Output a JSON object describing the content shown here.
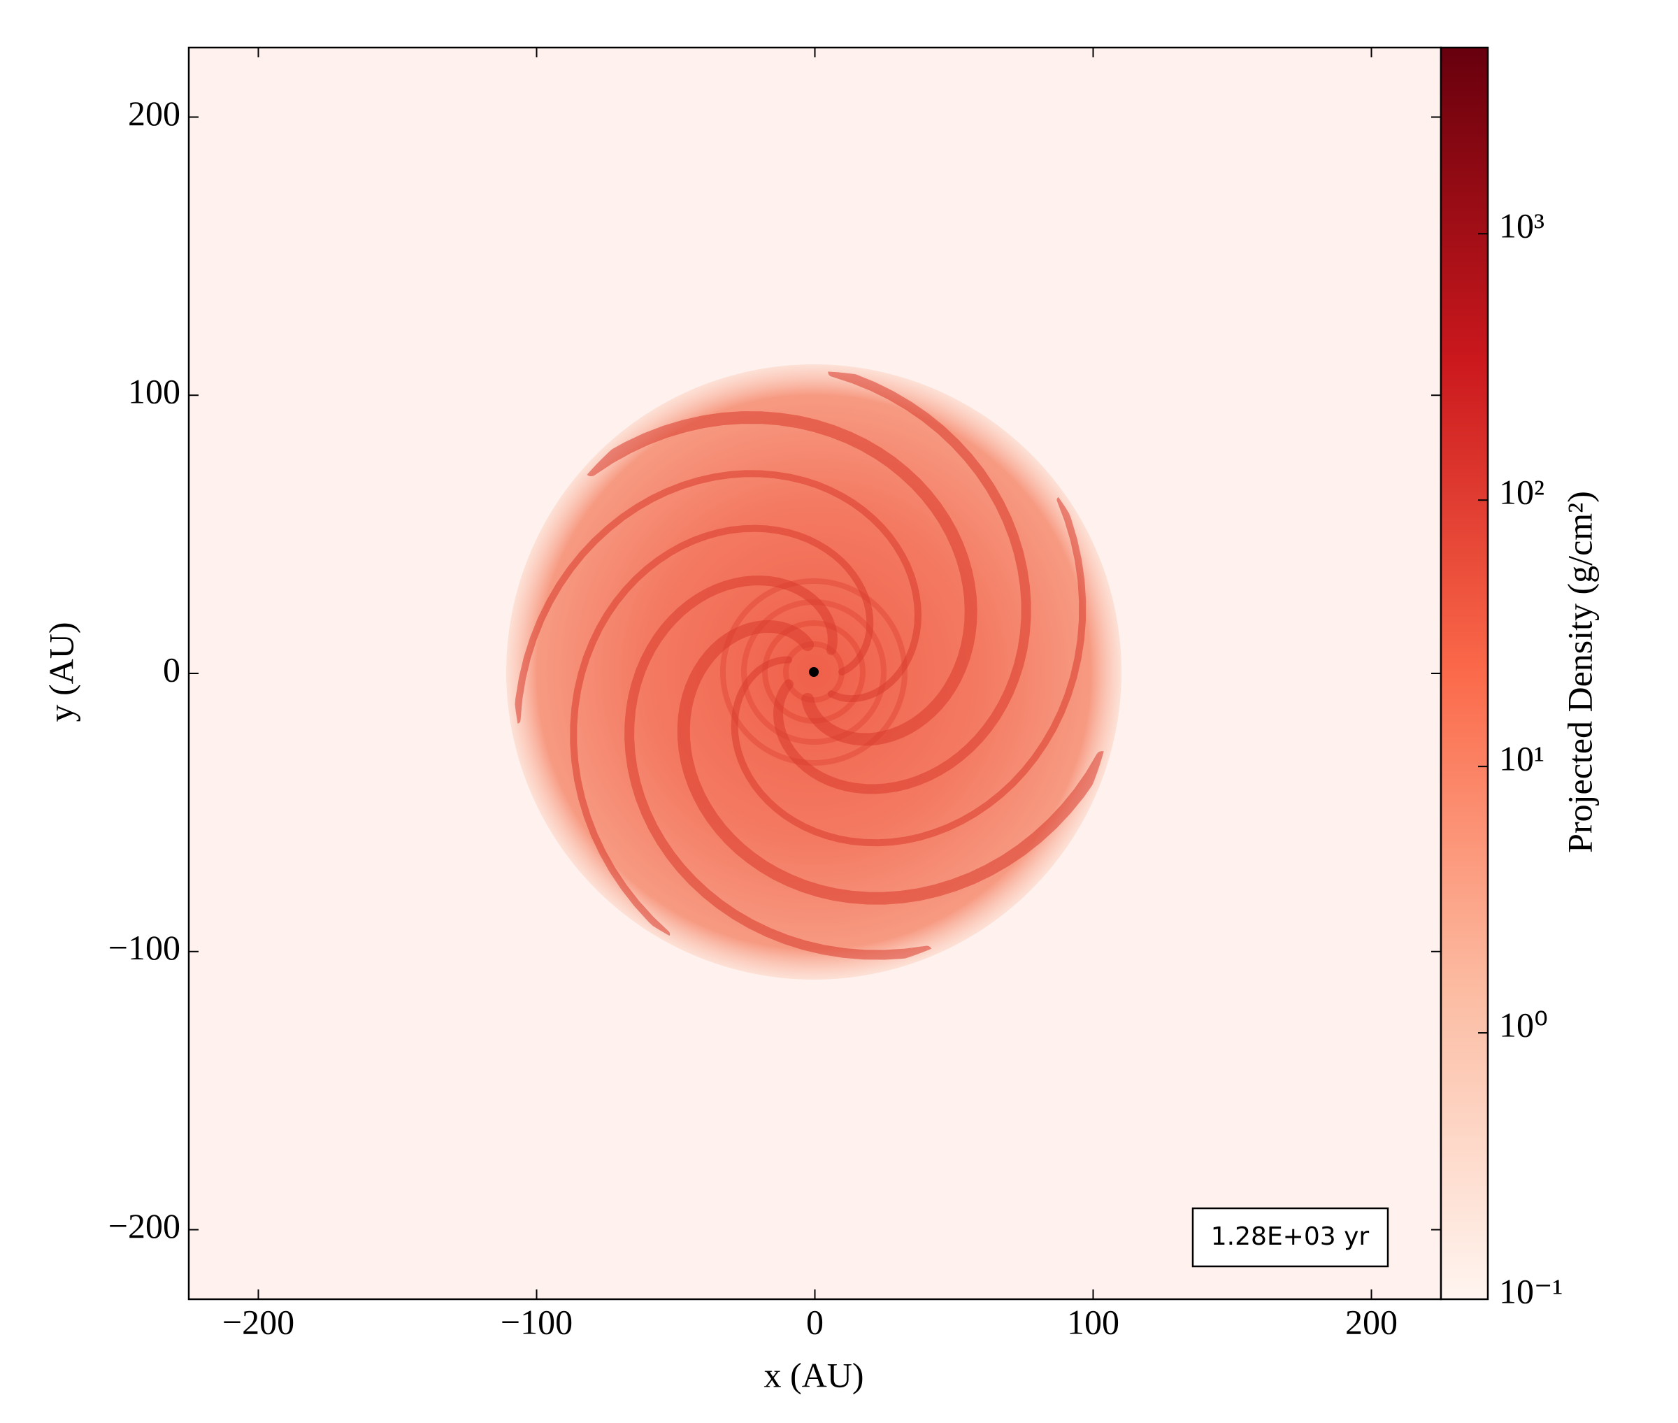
{
  "chart_data": {
    "type": "image",
    "xlabel": "x  (AU)",
    "ylabel": "y  (AU)",
    "xlim": [
      -225,
      225
    ],
    "ylim": [
      -225,
      225
    ],
    "xticks": [
      {
        "value": -200,
        "label": "−200"
      },
      {
        "value": -100,
        "label": "−100"
      },
      0,
      100,
      200
    ],
    "yticks": [
      {
        "value": -200,
        "label": "−200"
      },
      {
        "value": -100,
        "label": "−100"
      },
      0,
      100,
      200
    ],
    "annotation": "1.28E+03 yr",
    "colorbar": {
      "label": "Projected Density  (g/cm²)",
      "scale": "log",
      "lim": [
        0.1,
        5000
      ],
      "ticks": [
        {
          "value": 0.1,
          "label": "10⁻¹"
        },
        {
          "value": 1,
          "label": "10⁰"
        },
        {
          "value": 10,
          "label": "10¹"
        },
        {
          "value": 100,
          "label": "10²"
        },
        {
          "value": 1000,
          "label": "10³"
        }
      ],
      "colors": [
        "#fff5f0",
        "#fcbba1",
        "#fb6a4a",
        "#cb181d",
        "#67000d"
      ]
    }
  }
}
